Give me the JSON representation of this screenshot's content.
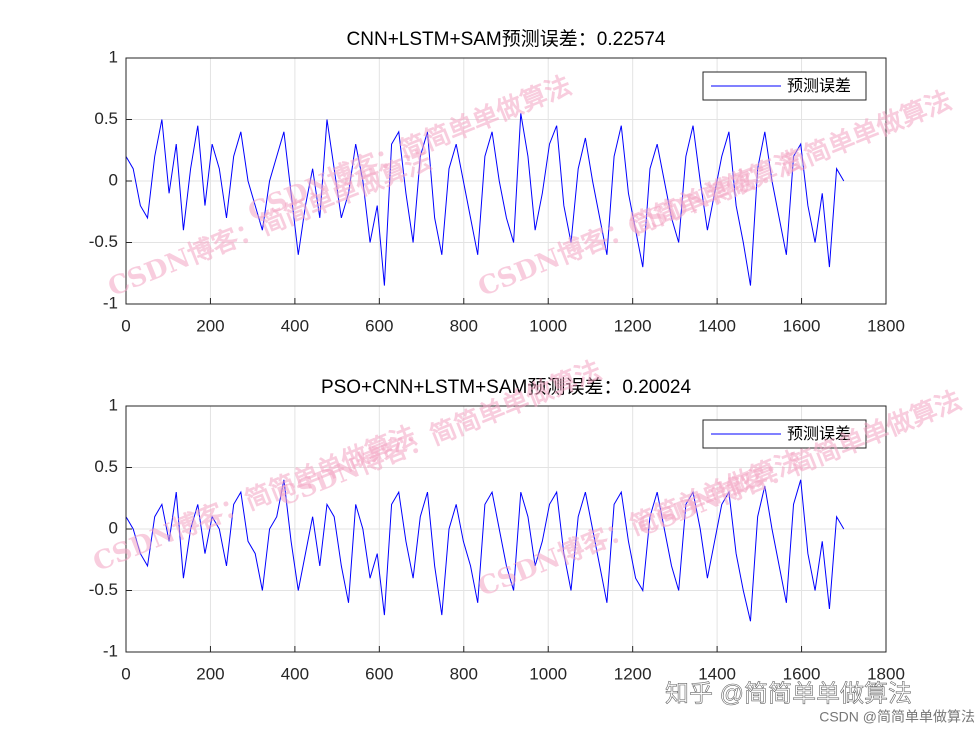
{
  "chart_data": [
    {
      "type": "line",
      "title": "CNN+LSTM+SAM预测误差：0.22574",
      "x": [
        0,
        17,
        34,
        51,
        68,
        85,
        102,
        119,
        136,
        153,
        170,
        187,
        204,
        221,
        238,
        255,
        272,
        289,
        306,
        323,
        340,
        357,
        374,
        391,
        408,
        425,
        442,
        459,
        476,
        493,
        510,
        527,
        544,
        561,
        578,
        595,
        612,
        629,
        646,
        663,
        680,
        697,
        714,
        731,
        748,
        765,
        782,
        799,
        816,
        833,
        850,
        867,
        884,
        901,
        918,
        935,
        952,
        969,
        986,
        1003,
        1020,
        1037,
        1054,
        1071,
        1088,
        1105,
        1122,
        1139,
        1156,
        1173,
        1190,
        1207,
        1224,
        1241,
        1258,
        1275,
        1292,
        1309,
        1326,
        1343,
        1360,
        1377,
        1394,
        1411,
        1428,
        1445,
        1462,
        1479,
        1496,
        1513,
        1530,
        1547,
        1564,
        1581,
        1598,
        1615,
        1632,
        1649,
        1666,
        1683,
        1700
      ],
      "series": [
        {
          "name": "预测误差",
          "color": "#0000ff",
          "values": [
            0.2,
            0.1,
            -0.2,
            -0.3,
            0.2,
            0.5,
            -0.1,
            0.3,
            -0.4,
            0.1,
            0.45,
            -0.2,
            0.3,
            0.1,
            -0.3,
            0.2,
            0.4,
            0,
            -0.2,
            -0.4,
            0,
            0.2,
            0.4,
            -0.1,
            -0.6,
            -0.2,
            0.1,
            -0.3,
            0.5,
            0.1,
            -0.3,
            -0.1,
            0.3,
            0,
            -0.5,
            -0.2,
            -0.85,
            0.3,
            0.4,
            -0.1,
            -0.5,
            0.2,
            0.4,
            -0.3,
            -0.6,
            0.1,
            0.3,
            0,
            -0.3,
            -0.6,
            0.2,
            0.4,
            0,
            -0.3,
            -0.5,
            0.55,
            0.2,
            -0.4,
            -0.1,
            0.3,
            0.45,
            -0.2,
            -0.5,
            0.1,
            0.35,
            0,
            -0.3,
            -0.6,
            0.2,
            0.45,
            -0.1,
            -0.4,
            -0.7,
            0.1,
            0.3,
            0,
            -0.3,
            -0.5,
            0.2,
            0.45,
            0,
            -0.4,
            -0.1,
            0.2,
            0.4,
            -0.2,
            -0.5,
            -0.85,
            0.1,
            0.4,
            0,
            -0.3,
            -0.6,
            0.2,
            0.3,
            -0.2,
            -0.5,
            -0.1,
            -0.7,
            0.1,
            0
          ]
        }
      ],
      "xlim": [
        0,
        1800
      ],
      "xticks": [
        0,
        200,
        400,
        600,
        800,
        1000,
        1200,
        1400,
        1600,
        1800
      ],
      "ylim": [
        -1,
        1
      ],
      "yticks": [
        -1,
        -0.5,
        0,
        0.5,
        1
      ],
      "grid": true,
      "legend": "northeast"
    },
    {
      "type": "line",
      "title": "PSO+CNN+LSTM+SAM预测误差：0.20024",
      "x": [
        0,
        17,
        34,
        51,
        68,
        85,
        102,
        119,
        136,
        153,
        170,
        187,
        204,
        221,
        238,
        255,
        272,
        289,
        306,
        323,
        340,
        357,
        374,
        391,
        408,
        425,
        442,
        459,
        476,
        493,
        510,
        527,
        544,
        561,
        578,
        595,
        612,
        629,
        646,
        663,
        680,
        697,
        714,
        731,
        748,
        765,
        782,
        799,
        816,
        833,
        850,
        867,
        884,
        901,
        918,
        935,
        952,
        969,
        986,
        1003,
        1020,
        1037,
        1054,
        1071,
        1088,
        1105,
        1122,
        1139,
        1156,
        1173,
        1190,
        1207,
        1224,
        1241,
        1258,
        1275,
        1292,
        1309,
        1326,
        1343,
        1360,
        1377,
        1394,
        1411,
        1428,
        1445,
        1462,
        1479,
        1496,
        1513,
        1530,
        1547,
        1564,
        1581,
        1598,
        1615,
        1632,
        1649,
        1666,
        1683,
        1700
      ],
      "series": [
        {
          "name": "预测误差",
          "color": "#0000ff",
          "values": [
            0.1,
            0,
            -0.2,
            -0.3,
            0.1,
            0.2,
            -0.1,
            0.3,
            -0.4,
            0,
            0.2,
            -0.2,
            0.1,
            0,
            -0.3,
            0.2,
            0.3,
            -0.1,
            -0.2,
            -0.5,
            0,
            0.1,
            0.4,
            -0.1,
            -0.5,
            -0.2,
            0.1,
            -0.3,
            0.2,
            0.1,
            -0.3,
            -0.6,
            0.2,
            0,
            -0.4,
            -0.2,
            -0.7,
            0.2,
            0.3,
            -0.1,
            -0.4,
            0.1,
            0.3,
            -0.3,
            -0.7,
            0,
            0.2,
            -0.1,
            -0.3,
            -0.6,
            0.2,
            0.3,
            0,
            -0.3,
            -0.5,
            0.3,
            0.1,
            -0.3,
            -0.1,
            0.2,
            0.3,
            -0.2,
            -0.5,
            0.1,
            0.3,
            0,
            -0.3,
            -0.6,
            0.2,
            0.3,
            -0.1,
            -0.4,
            -0.5,
            0.1,
            0.3,
            0,
            -0.3,
            -0.5,
            0.2,
            0.3,
            0,
            -0.4,
            -0.1,
            0.2,
            0.3,
            -0.2,
            -0.5,
            -0.75,
            0.1,
            0.35,
            0,
            -0.3,
            -0.6,
            0.2,
            0.4,
            -0.2,
            -0.5,
            -0.1,
            -0.65,
            0.1,
            0
          ]
        }
      ],
      "xlim": [
        0,
        1800
      ],
      "xticks": [
        0,
        200,
        400,
        600,
        800,
        1000,
        1200,
        1400,
        1600,
        1800
      ],
      "ylim": [
        -1,
        1
      ],
      "yticks": [
        -1,
        -0.5,
        0,
        0.5,
        1
      ],
      "grid": true,
      "legend": "northeast"
    }
  ],
  "watermark": "CSDN博客：简简单单做算法",
  "footer": {
    "zhihu": "知乎 @简简单单做算法",
    "csdn": "CSDN @简简单单做算法"
  }
}
